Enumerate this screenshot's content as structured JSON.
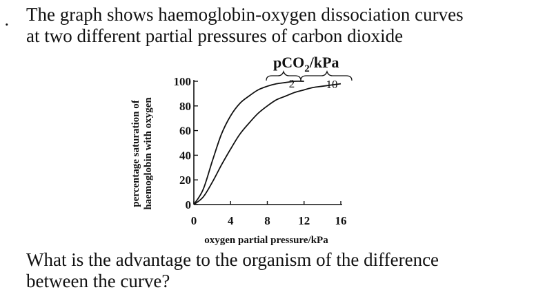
{
  "question": {
    "bullet": ".",
    "line1": "The graph shows haemoglobin-oxygen dissociation curves",
    "line2": "at two different partial pressures of carbon dioxide",
    "footer_line1": "What is the advantage to the organism of the difference",
    "footer_line2": "between the curve?"
  },
  "chart_data": {
    "type": "line",
    "title": "",
    "legend_title": "pCO2/kPa",
    "legend_title_parts": {
      "main": "pCO",
      "sub": "2",
      "rest": "/kPa"
    },
    "xlabel": "oxygen partial pressure/kPa",
    "ylabel_line1": "percentage saturation of",
    "ylabel_line2": "haemoglobin with oxygen",
    "xlim": [
      0,
      16
    ],
    "ylim": [
      0,
      100
    ],
    "x_ticks": [
      0,
      4,
      8,
      12,
      16
    ],
    "y_ticks": [
      0,
      20,
      40,
      60,
      80,
      100
    ],
    "x_tick_labels": [
      "0",
      "4",
      "8",
      "12",
      "16"
    ],
    "y_tick_labels": [
      "0",
      "20",
      "40",
      "60",
      "80",
      "100"
    ],
    "grid": false,
    "series": [
      {
        "name": "2",
        "x": [
          0,
          1,
          2,
          3,
          4,
          5,
          6,
          7,
          8,
          9,
          10,
          11,
          12
        ],
        "y": [
          0,
          12,
          35,
          57,
          72,
          82,
          88,
          93,
          96,
          98,
          99,
          100,
          100
        ]
      },
      {
        "name": "10",
        "x": [
          0,
          1,
          2,
          3,
          4,
          5,
          6,
          7,
          8,
          9,
          10,
          11,
          12,
          13,
          14,
          15,
          16
        ],
        "y": [
          0,
          6,
          18,
          32,
          45,
          57,
          66,
          74,
          80,
          85,
          88,
          91,
          93,
          95,
          96,
          97,
          98
        ]
      }
    ]
  }
}
